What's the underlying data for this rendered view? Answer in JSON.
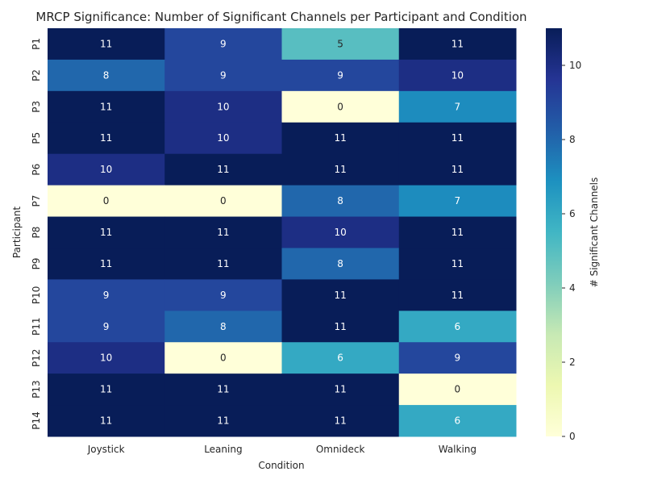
{
  "chart_data": {
    "type": "heatmap",
    "title": "MRCP Significance: Number of Significant Channels per Participant and Condition",
    "xlabel": "Condition",
    "ylabel": "Participant",
    "x_categories": [
      "Joystick",
      "Leaning",
      "Omnideck",
      "Walking"
    ],
    "y_categories": [
      "P1",
      "P2",
      "P3",
      "P5",
      "P6",
      "P7",
      "P8",
      "P9",
      "P10",
      "P11",
      "P12",
      "P13",
      "P14"
    ],
    "values": [
      [
        11,
        9,
        5,
        11
      ],
      [
        8,
        9,
        9,
        10
      ],
      [
        11,
        10,
        0,
        7
      ],
      [
        11,
        10,
        11,
        11
      ],
      [
        10,
        11,
        11,
        11
      ],
      [
        0,
        0,
        8,
        7
      ],
      [
        11,
        11,
        10,
        11
      ],
      [
        11,
        11,
        8,
        11
      ],
      [
        9,
        9,
        11,
        11
      ],
      [
        9,
        8,
        11,
        6
      ],
      [
        10,
        0,
        6,
        9
      ],
      [
        11,
        11,
        11,
        0
      ],
      [
        11,
        11,
        11,
        6
      ]
    ],
    "colorbar": {
      "label": "# Significant Channels",
      "range": [
        0,
        11
      ],
      "ticks": [
        "0",
        "2",
        "4",
        "6",
        "8",
        "10"
      ],
      "colormap": "YlGnBu"
    },
    "annotated": true,
    "grid": false
  }
}
